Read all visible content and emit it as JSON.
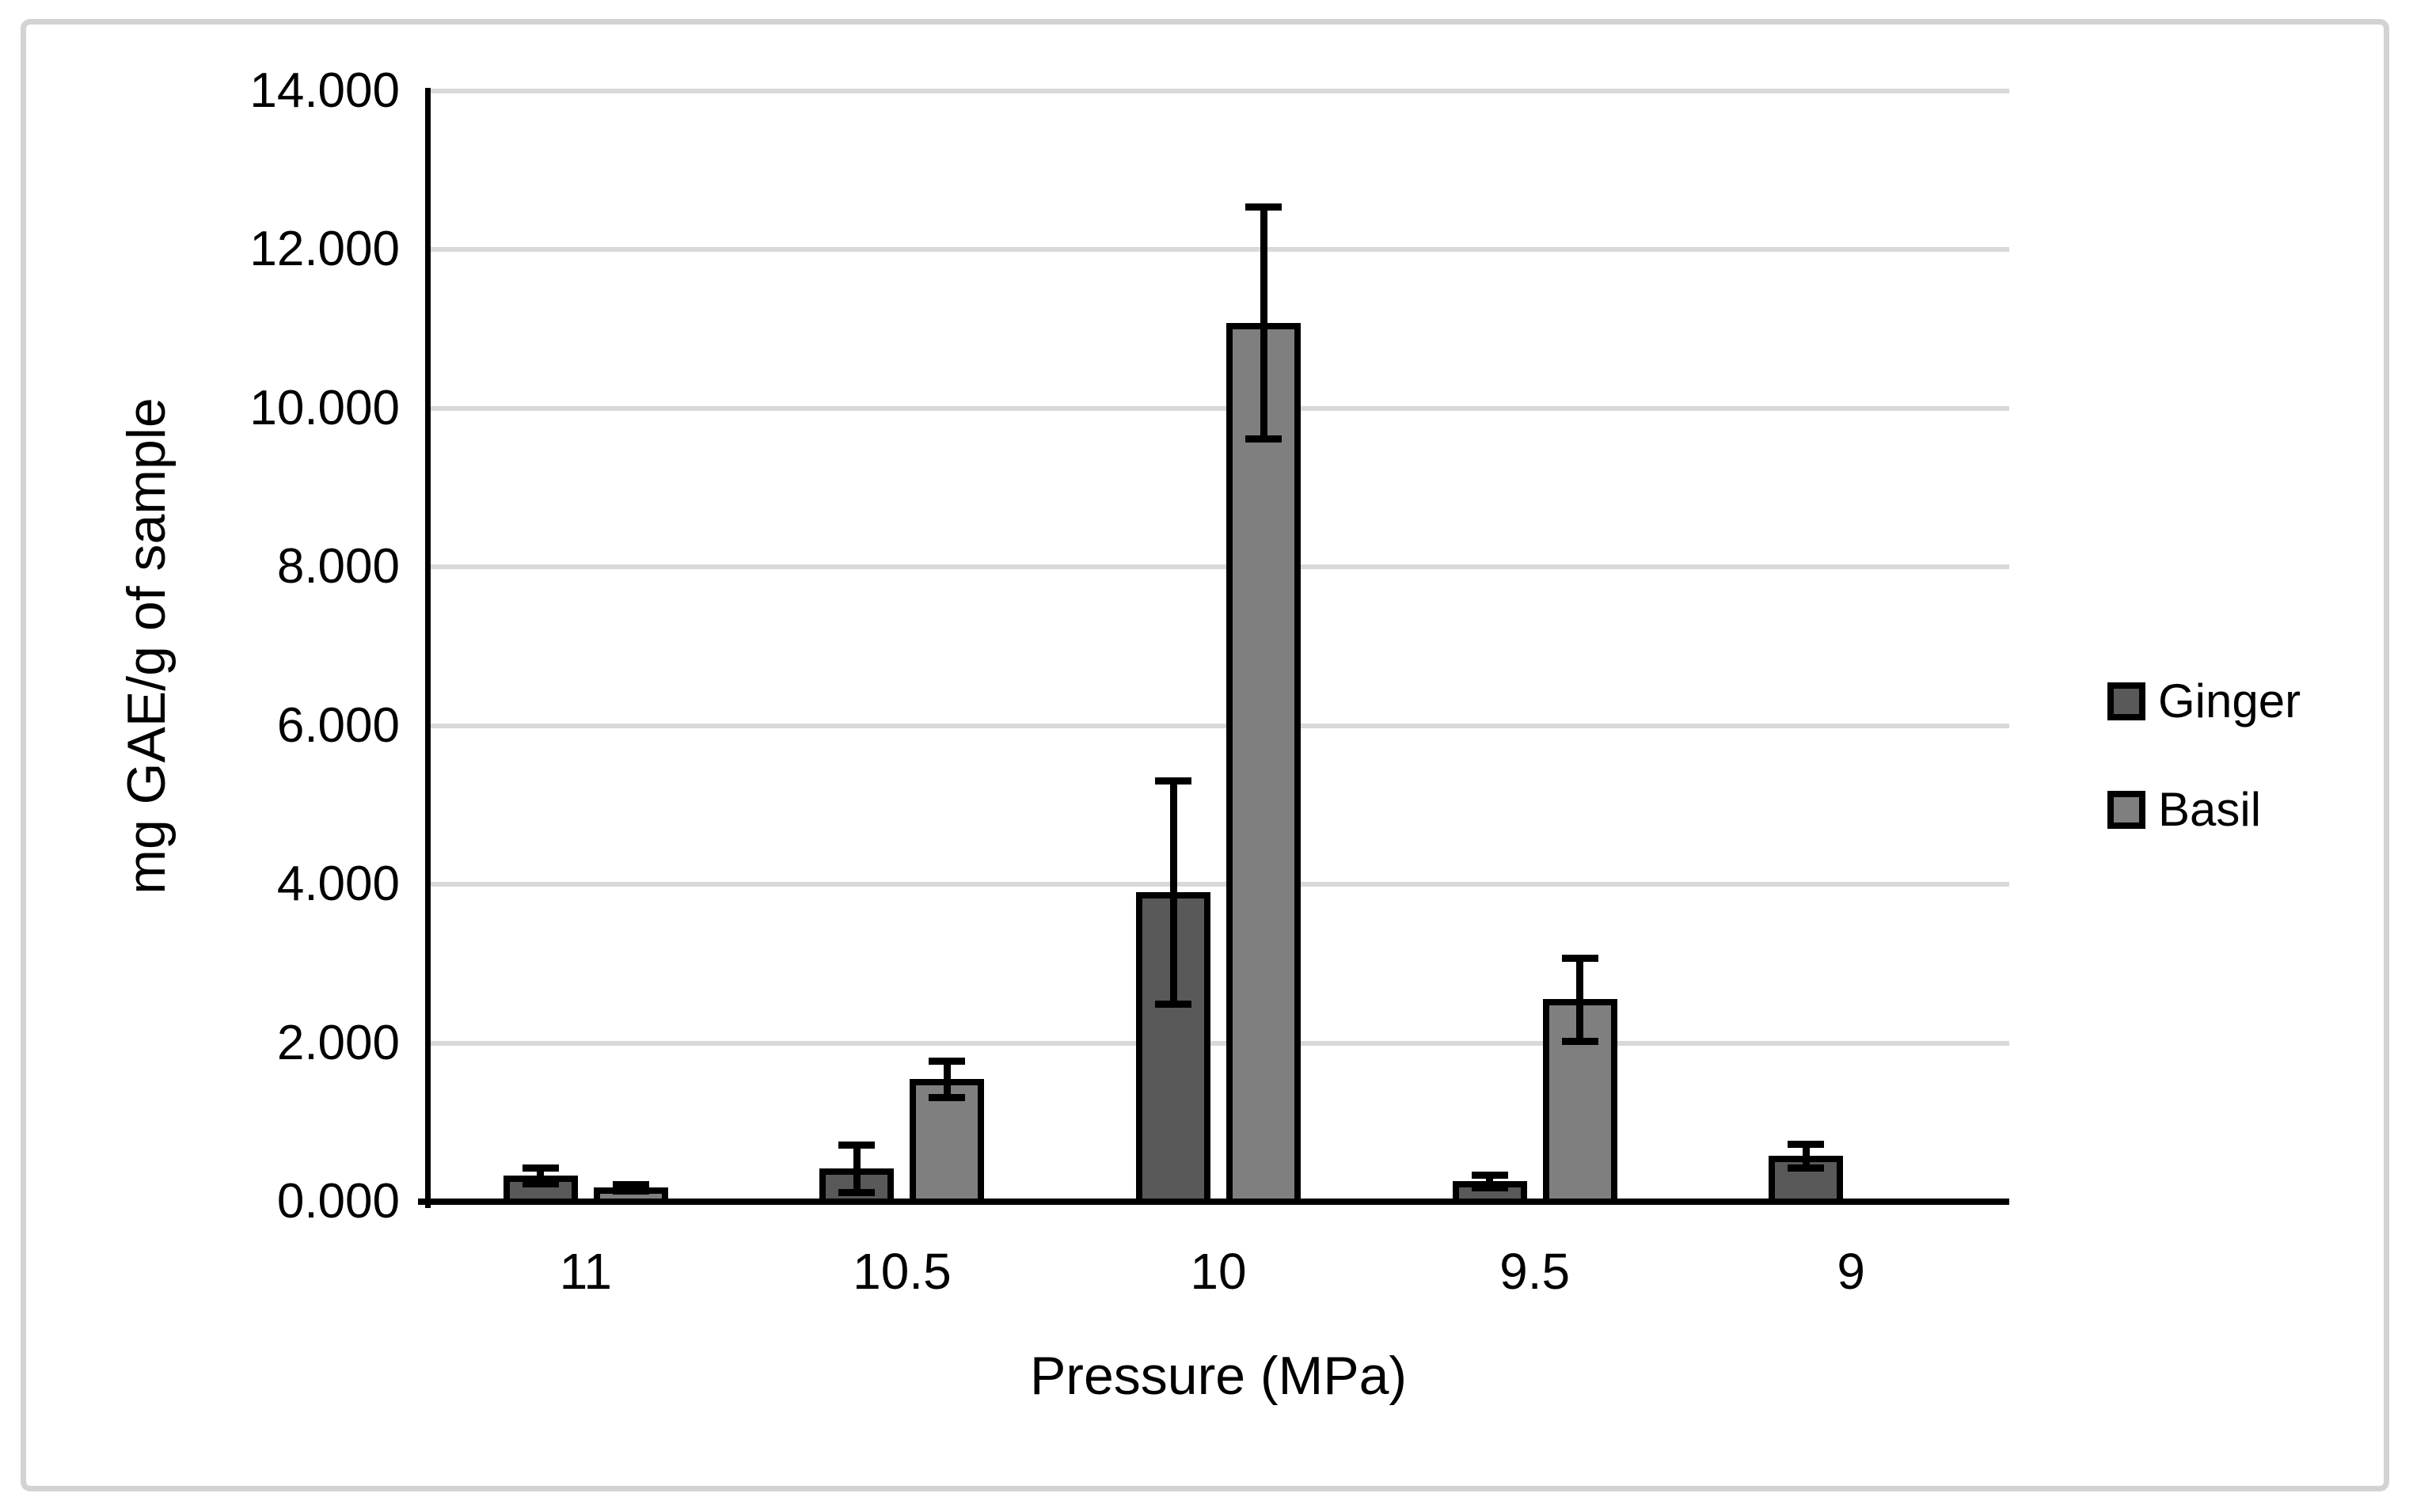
{
  "figure": {
    "background": "#FFFFFF",
    "border_color": "#D3D3D3"
  },
  "chart_data": {
    "type": "bar",
    "title": "",
    "xlabel": "Pressure (MPa)",
    "ylabel": "mg GAE/g of sample",
    "categories": [
      "11",
      "10.5",
      "10",
      "9.5",
      "9"
    ],
    "series": [
      {
        "name": "Ginger",
        "color": "#595959",
        "values": [
          0.33,
          0.42,
          3.9,
          0.26,
          0.58
        ],
        "errors": [
          0.1,
          0.3,
          1.41,
          0.08,
          0.15
        ]
      },
      {
        "name": "Basil",
        "color": "#7F7F7F",
        "values": [
          0.18,
          1.55,
          11.08,
          2.55,
          null
        ],
        "errors": [
          0.04,
          0.23,
          1.46,
          0.52,
          null
        ]
      }
    ],
    "ylim": [
      0,
      14
    ],
    "ytick_step": 2,
    "ytick_labels": [
      "0.000",
      "2.000",
      "4.000",
      "6.000",
      "8.000",
      "10.000",
      "12.000",
      "14.000"
    ],
    "grid": true,
    "gridline_color": "#D9D9D9",
    "axis_color": "#000000",
    "bar_border_color": "#000000",
    "error_bar_color": "#000000",
    "legend_position": "right"
  }
}
